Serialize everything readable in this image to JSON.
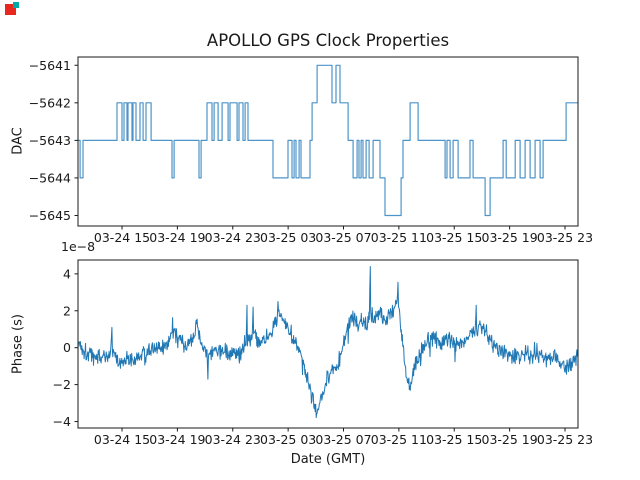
{
  "figure": {
    "background": "#ffffff",
    "axis_color": "#1a1a1a",
    "text_color": "#1a1a1a"
  },
  "cursor_marker": {
    "primary_color": "#e8271f",
    "secondary_color": "#00a9a4"
  },
  "chart_data": [
    {
      "type": "step",
      "title": "APOLLO GPS Clock Properties",
      "ylabel": "DAC",
      "line_color": "#4d94c9",
      "ylim": [
        -5645.28,
        -5640.78
      ],
      "xlim_hours": [
        -3.18,
        32.94
      ],
      "x_unit": "hours after first x tick (03-24 15 GMT)",
      "yticks": [
        -5641,
        -5642,
        -5643,
        -5644,
        -5645
      ],
      "ytick_labels": [
        "−5641",
        "−5642",
        "−5643",
        "−5644",
        "−5645"
      ],
      "xtick_hours": [
        0,
        4,
        8,
        12,
        16,
        20,
        24,
        28,
        32
      ],
      "xtick_labels": [
        "03-24 15",
        "03-24 19",
        "03-24 23",
        "03-25 03",
        "03-25 07",
        "03-25 11",
        "03-25 15",
        "03-25 19",
        "03-25 23"
      ],
      "grid": false,
      "legend": "none",
      "steps": [
        [
          -3.18,
          -5643
        ],
        [
          -3.03,
          -5644
        ],
        [
          -2.82,
          -5643
        ],
        [
          -0.36,
          -5642
        ],
        [
          0,
          -5643
        ],
        [
          0.14,
          -5642
        ],
        [
          0.36,
          -5643
        ],
        [
          0.43,
          -5642
        ],
        [
          0.72,
          -5643
        ],
        [
          0.79,
          -5642
        ],
        [
          1.01,
          -5643
        ],
        [
          1.3,
          -5642
        ],
        [
          1.52,
          -5643
        ],
        [
          1.73,
          -5642
        ],
        [
          2.1,
          -5643
        ],
        [
          3.61,
          -5644
        ],
        [
          3.76,
          -5643
        ],
        [
          5.56,
          -5644
        ],
        [
          5.71,
          -5643
        ],
        [
          6.14,
          -5642
        ],
        [
          6.5,
          -5643
        ],
        [
          6.65,
          -5642
        ],
        [
          6.94,
          -5643
        ],
        [
          7.23,
          -5642
        ],
        [
          7.66,
          -5643
        ],
        [
          7.8,
          -5642
        ],
        [
          8.31,
          -5643
        ],
        [
          8.45,
          -5642
        ],
        [
          8.74,
          -5643
        ],
        [
          8.89,
          -5642
        ],
        [
          9.1,
          -5643
        ],
        [
          10.91,
          -5644
        ],
        [
          11.99,
          -5643
        ],
        [
          12.28,
          -5644
        ],
        [
          12.43,
          -5643
        ],
        [
          12.57,
          -5644
        ],
        [
          12.79,
          -5643
        ],
        [
          12.93,
          -5644
        ],
        [
          13.58,
          -5643
        ],
        [
          13.73,
          -5642
        ],
        [
          14.09,
          -5641
        ],
        [
          15.17,
          -5642
        ],
        [
          15.46,
          -5641
        ],
        [
          15.75,
          -5642
        ],
        [
          16.33,
          -5643
        ],
        [
          16.69,
          -5644
        ],
        [
          16.98,
          -5643
        ],
        [
          17.12,
          -5644
        ],
        [
          17.27,
          -5643
        ],
        [
          17.41,
          -5644
        ],
        [
          17.63,
          -5643
        ],
        [
          17.85,
          -5644
        ],
        [
          18.14,
          -5643
        ],
        [
          18.64,
          -5644
        ],
        [
          19,
          -5645
        ],
        [
          20.16,
          -5644
        ],
        [
          20.3,
          -5643
        ],
        [
          20.81,
          -5642
        ],
        [
          21.39,
          -5643
        ],
        [
          23.34,
          -5644
        ],
        [
          23.48,
          -5643
        ],
        [
          23.7,
          -5644
        ],
        [
          23.92,
          -5643
        ],
        [
          24.28,
          -5644
        ],
        [
          25.14,
          -5643
        ],
        [
          25.36,
          -5644
        ],
        [
          26.23,
          -5645
        ],
        [
          26.59,
          -5644
        ],
        [
          27.53,
          -5643
        ],
        [
          27.75,
          -5644
        ],
        [
          28.4,
          -5643
        ],
        [
          28.76,
          -5644
        ],
        [
          29.12,
          -5643
        ],
        [
          29.48,
          -5644
        ],
        [
          29.84,
          -5643
        ],
        [
          30.2,
          -5644
        ],
        [
          30.42,
          -5643
        ],
        [
          32.08,
          -5642
        ],
        [
          32.94,
          -5642
        ]
      ]
    },
    {
      "type": "line",
      "ylabel": "Phase (s)",
      "xlabel": "Date (GMT)",
      "offset_label": "1e−8",
      "units": "values in 1e-8 seconds",
      "line_color": "#1f77b4",
      "ylim": [
        -4.35,
        4.75
      ],
      "xlim_hours": [
        -3.18,
        32.94
      ],
      "yticks": [
        4,
        2,
        0,
        -2,
        -4
      ],
      "ytick_labels": [
        "4",
        "2",
        "0",
        "−2",
        "−4"
      ],
      "xtick_hours": [
        0,
        4,
        8,
        12,
        16,
        20,
        24,
        28,
        32
      ],
      "xtick_labels": [
        "03-24 15",
        "03-24 19",
        "03-24 23",
        "03-25 03",
        "03-25 07",
        "03-25 11",
        "03-25 15",
        "03-25 19",
        "03-25 23"
      ],
      "grid": false,
      "legend": "none",
      "noise_amplitude": 0.42,
      "trend": [
        [
          -3.18,
          0.3
        ],
        [
          -2.67,
          -0.2
        ],
        [
          -1.95,
          -0.5
        ],
        [
          -1.23,
          -0.45
        ],
        [
          -0.72,
          -0.3
        ],
        [
          -0.14,
          -0.85
        ],
        [
          0.36,
          -0.55
        ],
        [
          0.94,
          -0.6
        ],
        [
          1.66,
          -0.35
        ],
        [
          2.38,
          -0.1
        ],
        [
          2.96,
          0
        ],
        [
          3.47,
          0.45
        ],
        [
          3.69,
          1.25
        ],
        [
          4.05,
          0.4
        ],
        [
          4.62,
          0.15
        ],
        [
          5.13,
          0.3
        ],
        [
          5.42,
          1.3
        ],
        [
          5.78,
          0.1
        ],
        [
          6.21,
          -0.4
        ],
        [
          6.72,
          -0.1
        ],
        [
          7.23,
          -0.25
        ],
        [
          7.95,
          -0.15
        ],
        [
          8.53,
          -0.3
        ],
        [
          9.03,
          0.4
        ],
        [
          9.47,
          0.6
        ],
        [
          9.83,
          0.4
        ],
        [
          10.26,
          0.3
        ],
        [
          10.77,
          0.8
        ],
        [
          11.27,
          1.9
        ],
        [
          11.63,
          1.5
        ],
        [
          11.99,
          1.1
        ],
        [
          12.36,
          0.6
        ],
        [
          12.72,
          0.1
        ],
        [
          13.08,
          -0.6
        ],
        [
          13.44,
          -1.8
        ],
        [
          13.8,
          -2.9
        ],
        [
          14.09,
          -3.5
        ],
        [
          14.45,
          -2.6
        ],
        [
          14.81,
          -1.7
        ],
        [
          15.17,
          -1.3
        ],
        [
          15.53,
          -1
        ],
        [
          15.9,
          -0.2
        ],
        [
          16.26,
          1
        ],
        [
          16.62,
          1.9
        ],
        [
          16.98,
          1.3
        ],
        [
          17.34,
          1.5
        ],
        [
          17.7,
          1.1
        ],
        [
          17.92,
          2.1
        ],
        [
          18.21,
          1.5
        ],
        [
          18.57,
          1.9
        ],
        [
          18.93,
          1.6
        ],
        [
          19.36,
          1.8
        ],
        [
          19.73,
          2.2
        ],
        [
          19.94,
          2.7
        ],
        [
          20.23,
          0.5
        ],
        [
          20.52,
          -1.5
        ],
        [
          20.81,
          -2.1
        ],
        [
          21.1,
          -1.2
        ],
        [
          21.53,
          -0.4
        ],
        [
          22.04,
          0.3
        ],
        [
          22.54,
          0.6
        ],
        [
          23.05,
          0.2
        ],
        [
          23.55,
          0.5
        ],
        [
          24.06,
          0.3
        ],
        [
          24.57,
          0.35
        ],
        [
          25.07,
          0.7
        ],
        [
          25.58,
          1
        ],
        [
          25.94,
          1.2
        ],
        [
          26.3,
          0.8
        ],
        [
          26.66,
          0.35
        ],
        [
          27.17,
          0
        ],
        [
          27.67,
          -0.3
        ],
        [
          28.18,
          -0.4
        ],
        [
          28.68,
          -0.5
        ],
        [
          29.19,
          -0.3
        ],
        [
          29.7,
          -0.55
        ],
        [
          30.2,
          -0.35
        ],
        [
          30.71,
          -0.6
        ],
        [
          31.21,
          -0.5
        ],
        [
          31.72,
          -0.8
        ],
        [
          32.22,
          -1
        ],
        [
          32.66,
          -0.8
        ],
        [
          32.94,
          -0.45
        ]
      ],
      "spikes": [
        [
          -0.72,
          1.1
        ],
        [
          5.42,
          1.55
        ],
        [
          6.21,
          -1.7
        ],
        [
          9.03,
          2.3
        ],
        [
          9.47,
          2.2
        ],
        [
          11.27,
          2.5
        ],
        [
          17.92,
          4.4
        ],
        [
          19.94,
          3.55
        ],
        [
          20.81,
          -2.3
        ],
        [
          25.58,
          2.3
        ]
      ]
    }
  ]
}
